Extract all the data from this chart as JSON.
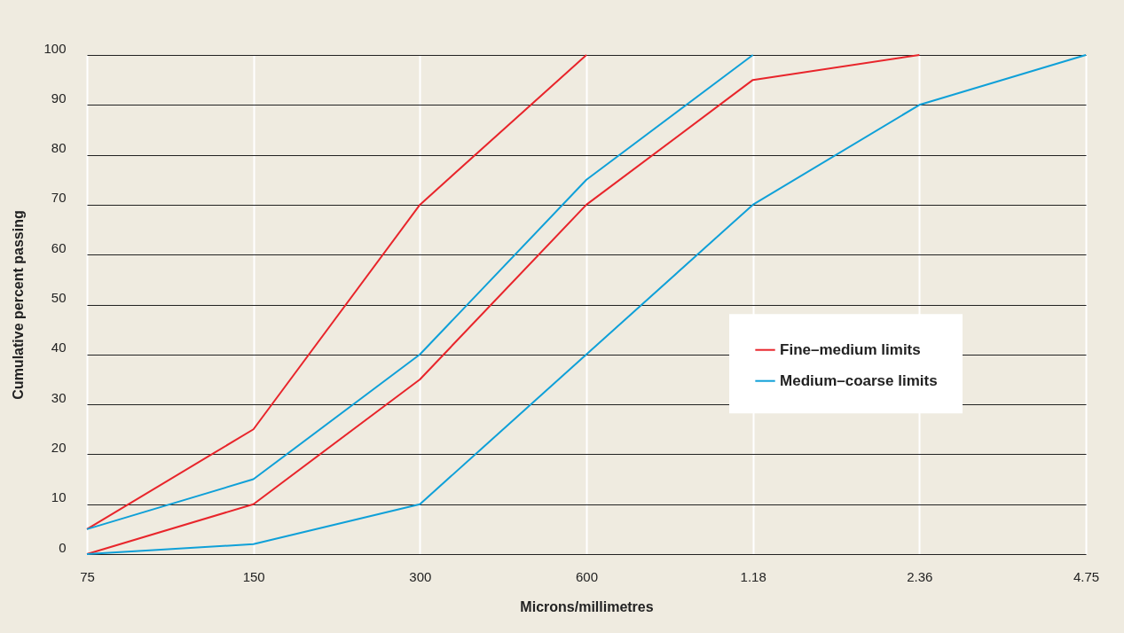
{
  "chart_data": {
    "type": "line",
    "xlabel": "Microns/millimetres",
    "ylabel": "Cumulative percent passing",
    "categories": [
      "75",
      "150",
      "300",
      "600",
      "1.18",
      "2.36",
      "4.75"
    ],
    "series": [
      {
        "name": "Fine–medium limits",
        "color": "#e8252b",
        "values": [
          5,
          25,
          70,
          100,
          null,
          null,
          null
        ]
      },
      {
        "color": "#e8252b",
        "values": [
          0,
          10,
          35,
          70,
          95,
          100,
          null
        ]
      },
      {
        "name": "Medium–coarse limits",
        "color": "#0fa0d8",
        "values": [
          5,
          15,
          40,
          75,
          100,
          null,
          null
        ]
      },
      {
        "color": "#0fa0d8",
        "values": [
          0,
          2,
          10,
          40,
          70,
          90,
          100
        ]
      }
    ],
    "ylim": [
      0,
      100
    ],
    "yticks": [
      0,
      10,
      20,
      30,
      40,
      50,
      60,
      70,
      80,
      90,
      100
    ],
    "grid": true,
    "legend": "right",
    "line_style": "solid"
  }
}
